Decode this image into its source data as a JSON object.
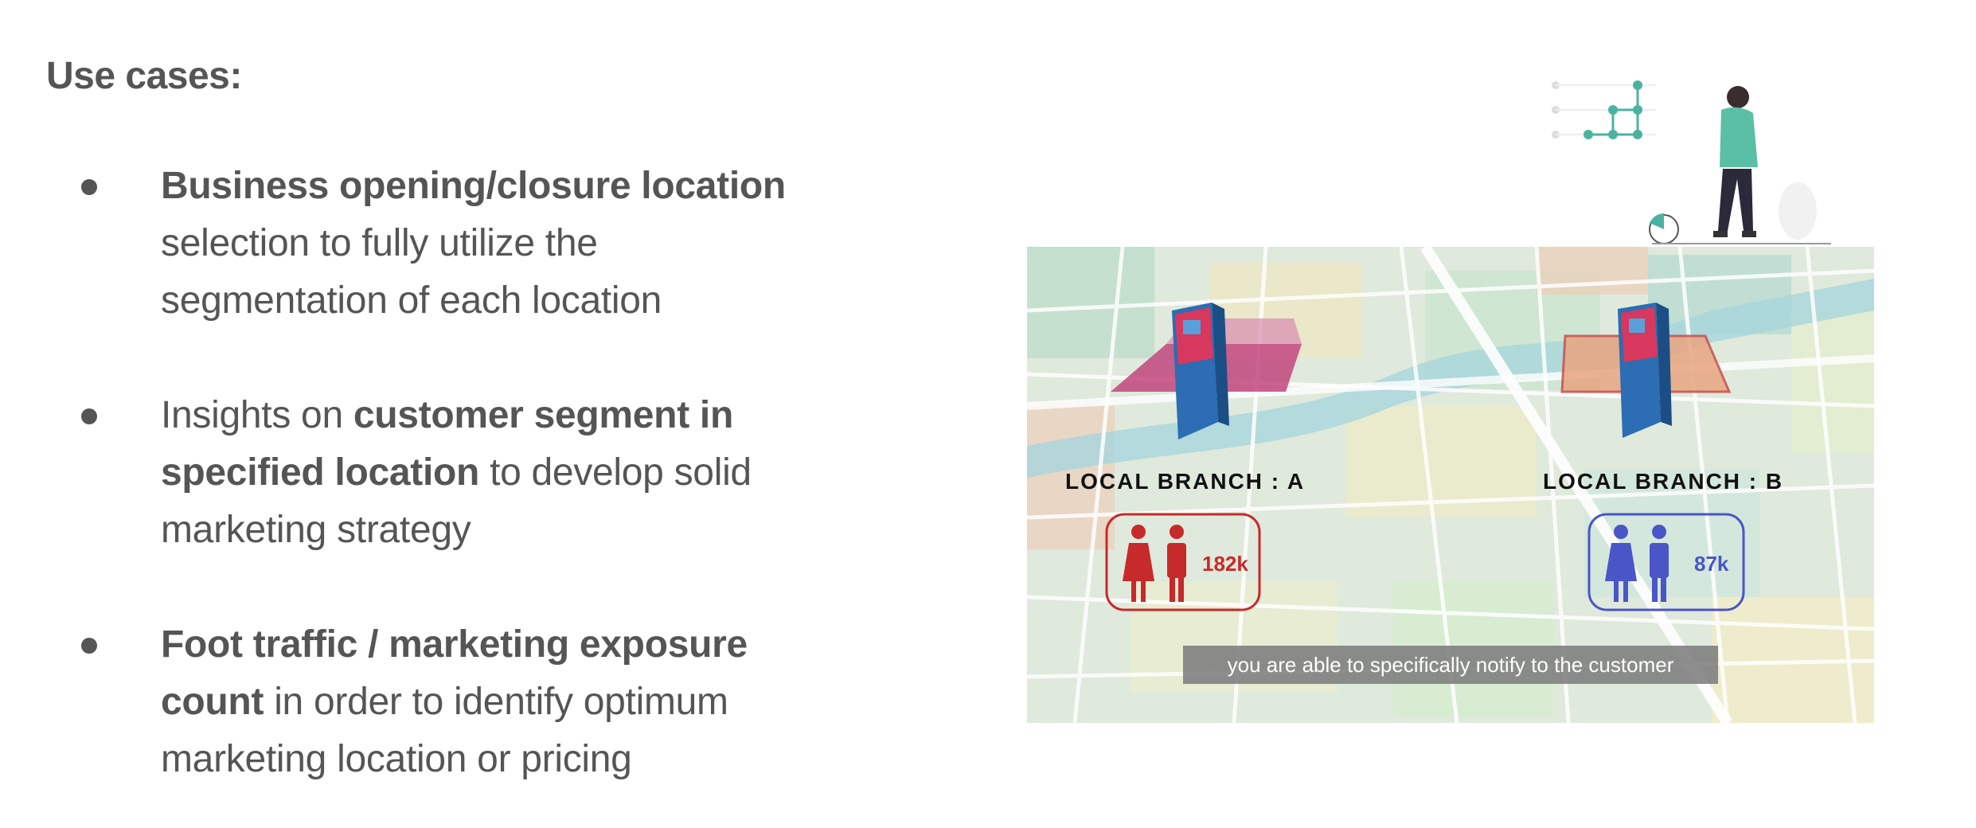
{
  "heading": "Use cases:",
  "use_cases": [
    {
      "bold_1": "Business opening/closure location",
      "text_1": " selection to fully utilize the segmentation of each location",
      "bold_2": "",
      "text_2": ""
    },
    {
      "text_0": "Insights on ",
      "bold_1": "customer segment in specified location",
      "text_1": " to develop solid marketing strategy"
    },
    {
      "bold_1": "Foot traffic / marketing exposure count",
      "text_1": " in order to identify optimum marketing location or pricing"
    }
  ],
  "map": {
    "branch_a": {
      "label": "LOCAL BRANCH : A",
      "count": "182k",
      "color": "#c62a2a",
      "zone_color": "#c2457e"
    },
    "branch_b": {
      "label": "LOCAL BRANCH : B",
      "count": "87k",
      "color": "#4a55c8",
      "zone_color": "#e8a580"
    },
    "caption": "you are able to specifically notify to the customer"
  }
}
